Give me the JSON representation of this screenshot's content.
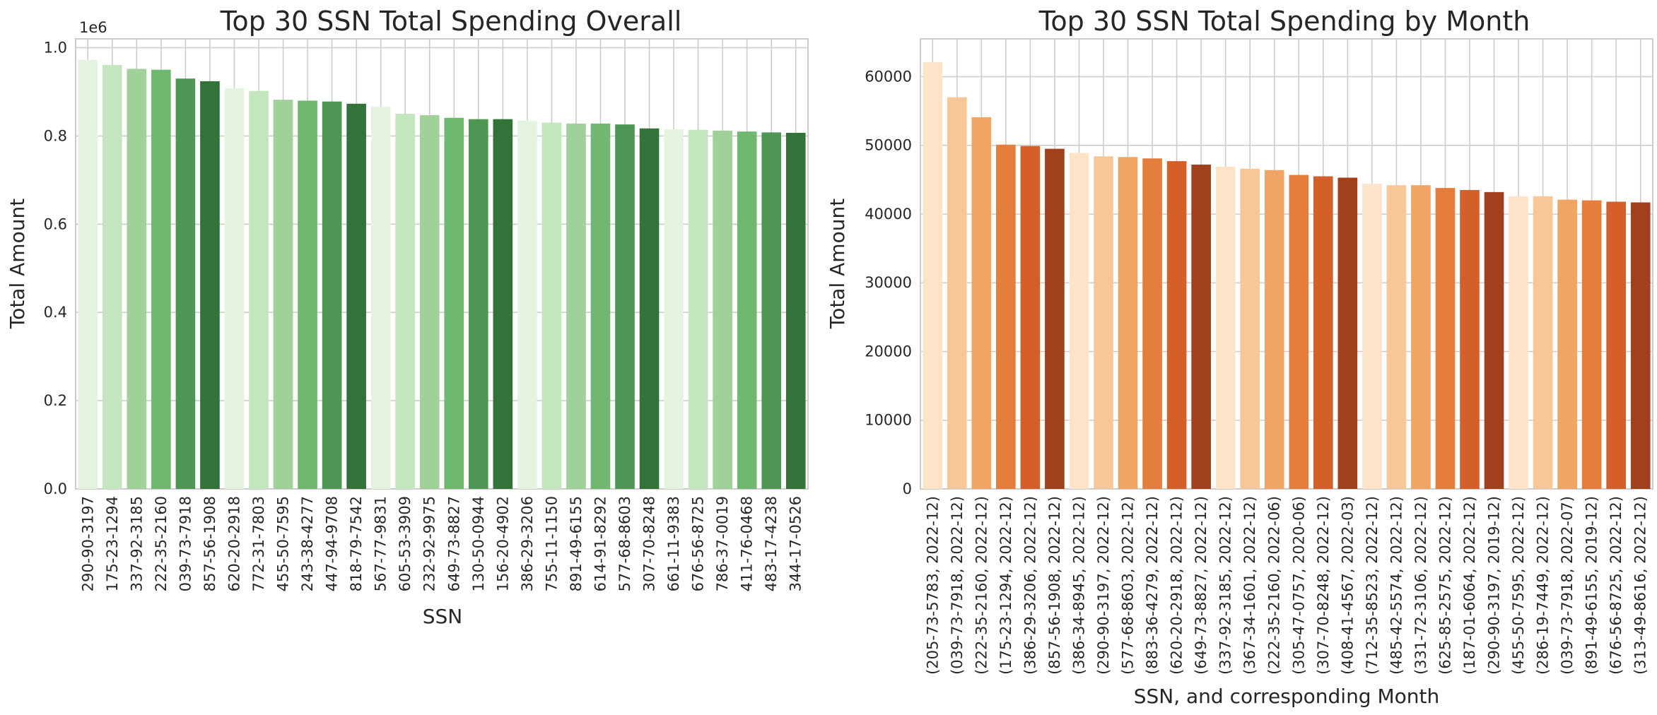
{
  "chart_data": [
    {
      "type": "bar",
      "title": "Top 30 SSN Total Spending Overall",
      "xlabel": "SSN",
      "ylabel": "Total Amount",
      "y_scale_label": "1e6",
      "ylim": [
        0,
        1.02
      ],
      "yticks": [
        0.0,
        0.2,
        0.4,
        0.6,
        0.8,
        1.0
      ],
      "ytick_labels": [
        "0.0",
        "0.2",
        "0.4",
        "0.6",
        "0.8",
        "1.0"
      ],
      "grid": true,
      "categories": [
        "290-90-3197",
        "175-23-1294",
        "337-92-3185",
        "222-35-2160",
        "039-73-7918",
        "857-56-1908",
        "620-20-2918",
        "772-31-7803",
        "455-50-7595",
        "243-38-4277",
        "447-94-9708",
        "818-79-7542",
        "567-77-9831",
        "605-53-3909",
        "232-92-9975",
        "649-73-8827",
        "130-50-0944",
        "156-20-4902",
        "386-29-3206",
        "755-11-1150",
        "891-49-6155",
        "614-91-8292",
        "577-68-8603",
        "307-70-8248",
        "661-11-9383",
        "676-56-8725",
        "786-37-0019",
        "411-76-0468",
        "483-17-4238",
        "344-17-0526"
      ],
      "values": [
        0.972,
        0.961,
        0.952,
        0.95,
        0.93,
        0.924,
        0.908,
        0.902,
        0.882,
        0.88,
        0.878,
        0.873,
        0.866,
        0.85,
        0.847,
        0.841,
        0.838,
        0.838,
        0.835,
        0.83,
        0.828,
        0.828,
        0.826,
        0.817,
        0.815,
        0.814,
        0.812,
        0.81,
        0.808,
        0.807
      ],
      "palette": [
        "#e5f4df",
        "#c4e6be",
        "#a0d199",
        "#70b76f",
        "#4d9654",
        "#33733a"
      ]
    },
    {
      "type": "bar",
      "title": "Top 30 SSN Total Spending by Month",
      "xlabel": "SSN, and corresponding Month",
      "ylabel": "Total Amount",
      "ylim": [
        0,
        65500
      ],
      "yticks": [
        0,
        10000,
        20000,
        30000,
        40000,
        50000,
        60000
      ],
      "ytick_labels": [
        "0",
        "10000",
        "20000",
        "30000",
        "40000",
        "50000",
        "60000"
      ],
      "grid": true,
      "categories": [
        "(205-73-5783, 2022-12)",
        "(039-73-7918, 2022-12)",
        "(222-35-2160, 2022-12)",
        "(175-23-1294, 2022-12)",
        "(386-29-3206, 2022-12)",
        "(857-56-1908, 2022-12)",
        "(386-34-8945, 2022-12)",
        "(290-90-3197, 2022-12)",
        "(577-68-8603, 2022-12)",
        "(883-36-4279, 2022-12)",
        "(620-20-2918, 2022-12)",
        "(649-73-8827, 2022-12)",
        "(337-92-3185, 2022-12)",
        "(367-34-1601, 2022-12)",
        "(222-35-2160, 2022-06)",
        "(305-47-0757, 2020-06)",
        "(307-70-8248, 2022-12)",
        "(408-41-4567, 2022-03)",
        "(712-35-8523, 2022-12)",
        "(485-42-5574, 2022-12)",
        "(331-72-3106, 2022-12)",
        "(625-85-2575, 2022-12)",
        "(187-01-6064, 2022-12)",
        "(290-90-3197, 2019-12)",
        "(455-50-7595, 2022-12)",
        "(286-19-7449, 2022-12)",
        "(039-73-7918, 2022-07)",
        "(891-49-6155, 2019-12)",
        "(676-56-8725, 2022-12)",
        "(313-49-8616, 2022-12)"
      ],
      "values": [
        62100,
        57000,
        54100,
        50100,
        49900,
        49500,
        48900,
        48400,
        48300,
        48100,
        47700,
        47200,
        46900,
        46600,
        46400,
        45700,
        45500,
        45300,
        44400,
        44200,
        44200,
        43800,
        43500,
        43200,
        42600,
        42600,
        42100,
        42000,
        41800,
        41700
      ],
      "palette": [
        "#fde3c8",
        "#f7c797",
        "#f0a565",
        "#e57e3c",
        "#d45f28",
        "#a0401c"
      ]
    }
  ]
}
